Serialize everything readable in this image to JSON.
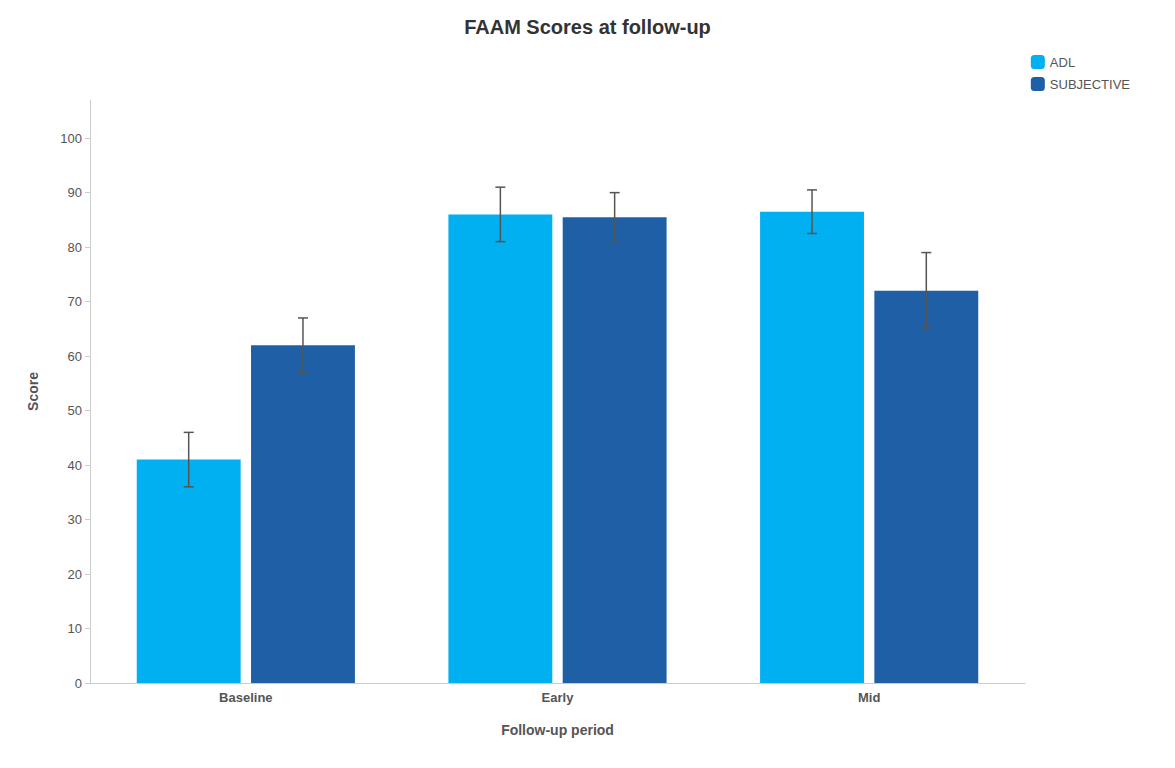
{
  "chart_data": {
    "type": "bar",
    "title": "FAAM Scores at follow-up",
    "xlabel": "Follow-up period",
    "ylabel": "Score",
    "categories": [
      "Baseline",
      "Early",
      "Mid"
    ],
    "series": [
      {
        "name": "ADL",
        "color": "#00B0F0",
        "values": [
          41,
          86,
          86.5
        ],
        "errors": [
          5,
          5,
          4
        ]
      },
      {
        "name": "SUBJECTIVE",
        "color": "#1F5FA6",
        "values": [
          62,
          85.5,
          72
        ],
        "errors": [
          5,
          4.5,
          7
        ]
      }
    ],
    "ylim": [
      0,
      107
    ],
    "yticks": [
      0,
      10,
      20,
      30,
      40,
      50,
      60,
      70,
      80,
      90,
      100
    ],
    "grid": false,
    "legend": "upper right"
  }
}
